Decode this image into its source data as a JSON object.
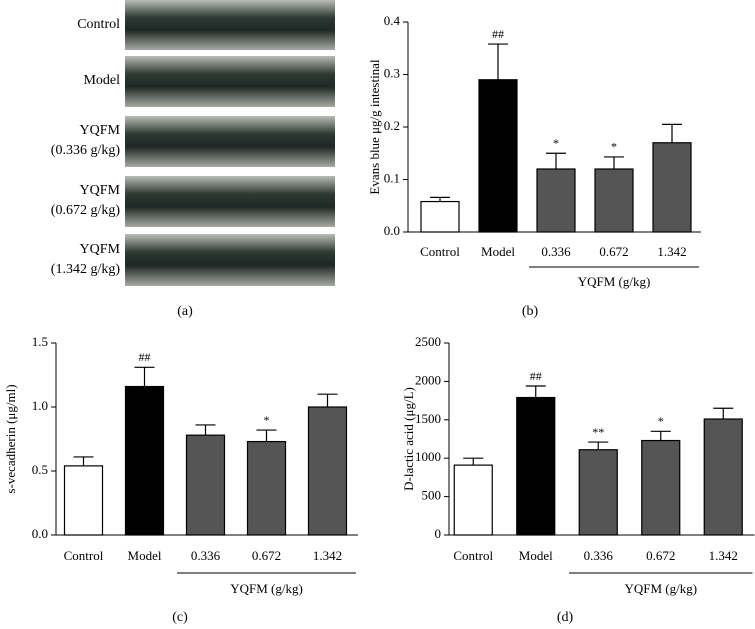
{
  "photo_panel": {
    "panel": "(a)",
    "labels": [
      [
        "Control"
      ],
      [
        "Model"
      ],
      [
        "YQFM",
        "(0.336 g/kg)"
      ],
      [
        "YQFM",
        "(0.672 g/kg)"
      ],
      [
        "YQFM",
        "(1.342 g/kg)"
      ]
    ]
  },
  "chart_data": [
    {
      "type": "bar",
      "panel": "(b)",
      "y_label": "Evans blue μg/g intestinal",
      "group_label": "YQFM (g/kg)",
      "categories": [
        "Control",
        "Model",
        "0.336",
        "0.672",
        "1.342"
      ],
      "values": [
        0.058,
        0.29,
        0.12,
        0.12,
        0.17
      ],
      "errors": [
        0.008,
        0.068,
        0.03,
        0.023,
        0.035
      ],
      "annotations": [
        null,
        "##",
        "*",
        "*",
        null
      ],
      "colors": [
        "#ffffff",
        "#000000",
        "#555555",
        "#555555",
        "#555555"
      ],
      "ylim": [
        0,
        0.4
      ],
      "yticks": [
        {
          "value": 0,
          "label": "0.0"
        },
        0.1,
        0.2,
        0.3,
        0.4
      ]
    },
    {
      "type": "bar",
      "panel": "(c)",
      "y_label": "s-vecadherin (μg/ml)",
      "group_label": "YQFM (g/kg)",
      "categories": [
        "Control",
        "Model",
        "0.336",
        "0.672",
        "1.342"
      ],
      "values": [
        0.54,
        1.16,
        0.78,
        0.73,
        1.0
      ],
      "errors": [
        0.07,
        0.15,
        0.08,
        0.09,
        0.1
      ],
      "annotations": [
        null,
        "##",
        null,
        "*",
        null
      ],
      "colors": [
        "#ffffff",
        "#000000",
        "#555555",
        "#555555",
        "#555555"
      ],
      "ylim": [
        0,
        1.5
      ],
      "yticks": [
        {
          "value": 0,
          "label": "0.0"
        },
        0.5,
        {
          "value": 1,
          "label": "1.0"
        },
        1.5
      ]
    },
    {
      "type": "bar",
      "panel": "(d)",
      "y_label": "D-lactic acid (μg/L)",
      "group_label": "YQFM (g/kg)",
      "categories": [
        "Control",
        "Model",
        "0.336",
        "0.672",
        "1.342"
      ],
      "values": [
        910,
        1790,
        1110,
        1230,
        1510
      ],
      "errors": [
        90,
        150,
        100,
        120,
        140
      ],
      "annotations": [
        null,
        "##",
        "**",
        "*",
        null
      ],
      "colors": [
        "#ffffff",
        "#000000",
        "#555555",
        "#555555",
        "#555555"
      ],
      "ylim": [
        0,
        2500
      ],
      "yticks": [
        0,
        500,
        1000,
        1500,
        2000,
        2500
      ]
    }
  ]
}
